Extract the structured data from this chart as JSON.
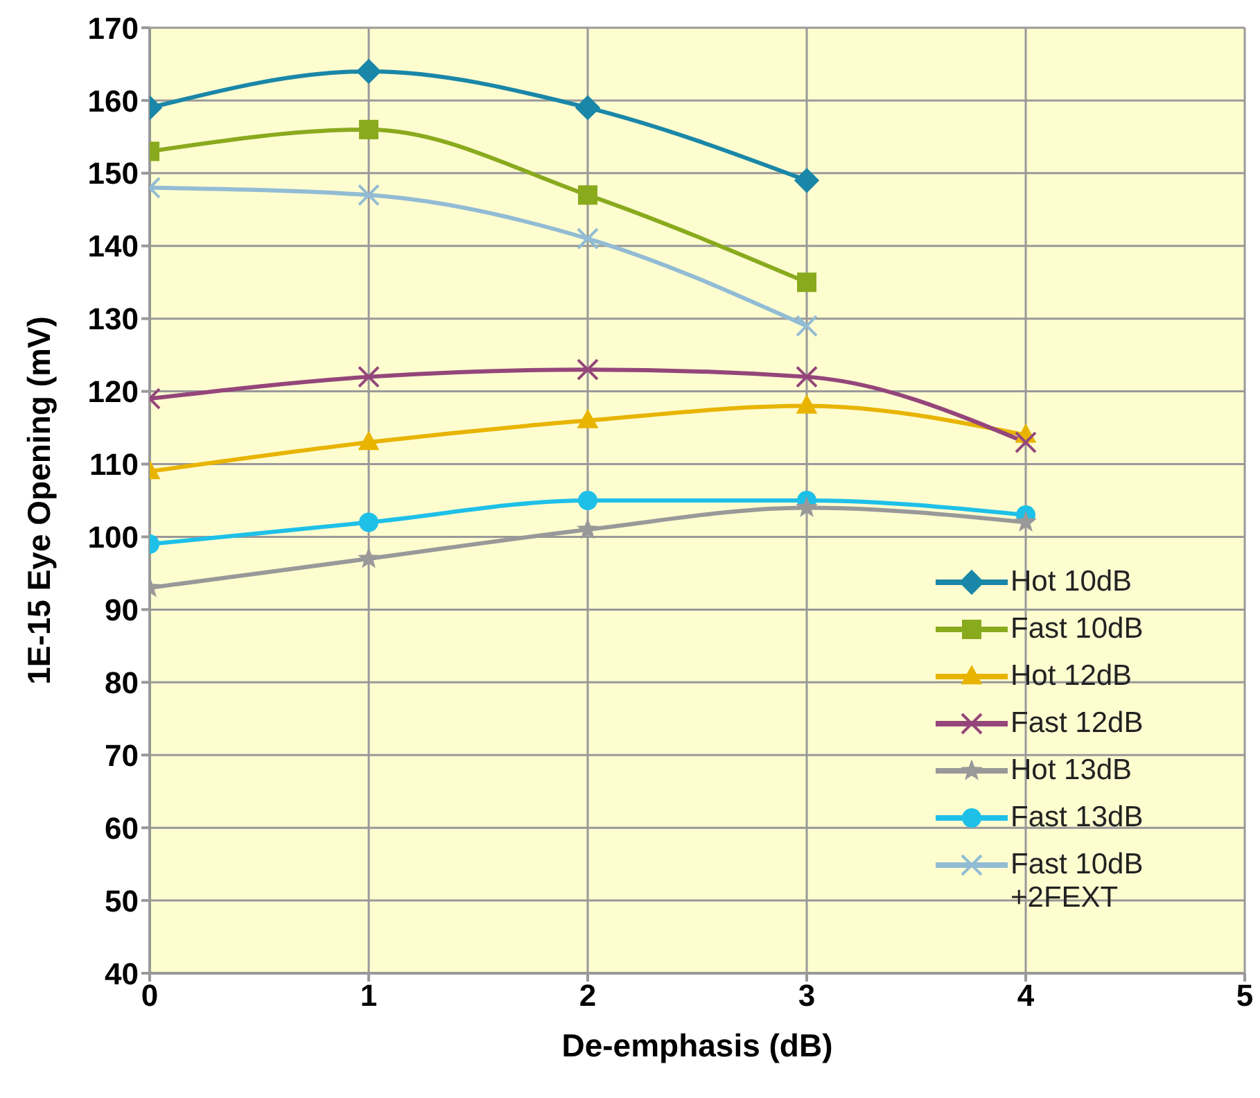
{
  "chart_data": {
    "type": "line",
    "xlabel": "De-emphasis (dB)",
    "ylabel": "1E-15 Eye Opening (mV)",
    "x": [
      0,
      1,
      2,
      3,
      4
    ],
    "series": [
      {
        "name": "Hot 10dB",
        "color": "#1a87a8",
        "marker": "diamond",
        "values": [
          159,
          164,
          159,
          149,
          null
        ]
      },
      {
        "name": "Fast 10dB",
        "color": "#8aaa1e",
        "marker": "square",
        "values": [
          153,
          156,
          147,
          135,
          null
        ]
      },
      {
        "name": "Hot 12dB",
        "color": "#e8b400",
        "marker": "triangle",
        "values": [
          109,
          113,
          116,
          118,
          114
        ]
      },
      {
        "name": "Fast 12dB",
        "color": "#94467a",
        "marker": "cross",
        "values": [
          119,
          122,
          123,
          122,
          113
        ]
      },
      {
        "name": "Hot 13dB",
        "color": "#999999",
        "marker": "star",
        "values": [
          93,
          97,
          101,
          104,
          102
        ]
      },
      {
        "name": "Fast 13dB",
        "color": "#1ec0e8",
        "marker": "circle",
        "values": [
          99,
          102,
          105,
          105,
          103
        ]
      },
      {
        "name": "Fast 10dB\n+2FEXT",
        "color": "#92bcd4",
        "marker": "cross",
        "values": [
          148,
          147,
          141,
          129,
          null
        ]
      }
    ],
    "xlim": [
      0,
      5
    ],
    "xticks": [
      0,
      1,
      2,
      3,
      4,
      5
    ],
    "ylim": [
      40,
      170
    ],
    "yticks": [
      40,
      50,
      60,
      70,
      80,
      90,
      100,
      110,
      120,
      130,
      140,
      150,
      160,
      170
    ],
    "grid": true,
    "legend": "right",
    "line_style": "solid"
  }
}
